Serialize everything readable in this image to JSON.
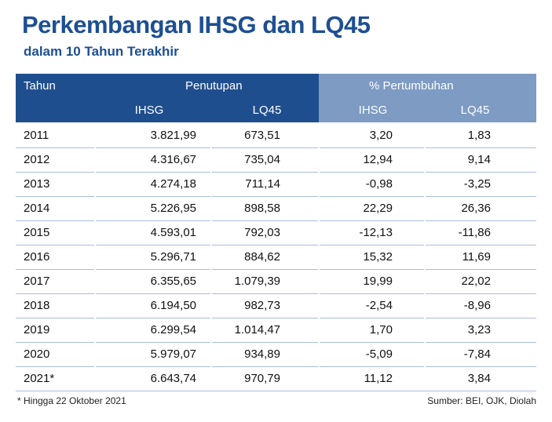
{
  "header": {
    "title": "Perkembangan IHSG dan LQ45",
    "subtitle": "dalam 10 Tahun Terakhir"
  },
  "table": {
    "group_headers": [
      "Tahun",
      "Penutupan",
      "% Pertumbuhan"
    ],
    "sub_headers": [
      "IHSG",
      "LQ45",
      "IHSG",
      "LQ45"
    ],
    "rows": [
      [
        "2011",
        "3.821,99",
        "673,51",
        "3,20",
        "1,83"
      ],
      [
        "2012",
        "4.316,67",
        "735,04",
        "12,94",
        "9,14"
      ],
      [
        "2013",
        "4.274,18",
        "711,14",
        "-0,98",
        "-3,25"
      ],
      [
        "2014",
        "5.226,95",
        "898,58",
        "22,29",
        "26,36"
      ],
      [
        "2015",
        "4.593,01",
        "792,03",
        "-12,13",
        "-11,86"
      ],
      [
        "2016",
        "5.296,71",
        "884,62",
        "15,32",
        "11,69"
      ],
      [
        "2017",
        "6.355,65",
        "1.079,39",
        "19,99",
        "22,02"
      ],
      [
        "2018",
        "6.194,50",
        "982,73",
        "-2,54",
        "-8,96"
      ],
      [
        "2019",
        "6.299,54",
        "1.014,47",
        "1,70",
        "3,23"
      ],
      [
        "2020",
        "5.979,07",
        "934,89",
        "-5,09",
        "-7,84"
      ],
      [
        "2021*",
        "6.643,74",
        "970,79",
        "11,12",
        "3,84"
      ]
    ]
  },
  "footer": {
    "note": "* Hingga 22 Oktober 2021",
    "source": "Sumber: BEI, OJK, Diolah"
  }
}
